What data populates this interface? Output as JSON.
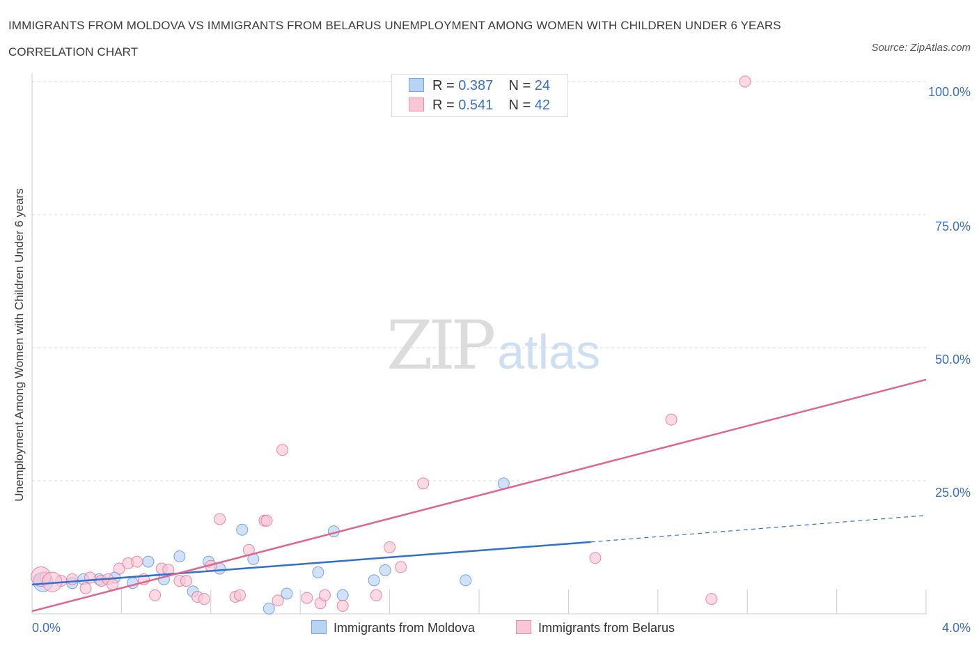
{
  "title": "IMMIGRANTS FROM MOLDOVA VS IMMIGRANTS FROM BELARUS UNEMPLOYMENT AMONG WOMEN WITH CHILDREN UNDER 6 YEARS CORRELATION CHART",
  "source": "Source: ZipAtlas.com",
  "watermark": {
    "zip": "ZIP",
    "atlas": "atlas"
  },
  "legend_top": [
    {
      "r_label": "R =",
      "r_value": "0.387",
      "n_label": "N =",
      "n_value": "24",
      "fill": "#b9d3f5",
      "stroke": "#7aa6e0"
    },
    {
      "r_label": "R =",
      "r_value": "0.541",
      "n_label": "N =",
      "n_value": "42",
      "fill": "#f9c6d5",
      "stroke": "#e591ab"
    }
  ],
  "legend_bottom": [
    {
      "label": "Immigrants from Moldova",
      "fill": "#b9d3f5",
      "stroke": "#7aa6e0"
    },
    {
      "label": "Immigrants from Belarus",
      "fill": "#f9c6d5",
      "stroke": "#e591ab"
    }
  ],
  "chart_data": {
    "type": "scatter",
    "title": "IMMIGRANTS FROM MOLDOVA VS IMMIGRANTS FROM BELARUS UNEMPLOYMENT AMONG WOMEN WITH CHILDREN UNDER 6 YEARS CORRELATION CHART",
    "xlabel": "",
    "ylabel": "Unemployment Among Women with Children Under 6 years",
    "xlim": [
      0,
      4.0
    ],
    "ylim": [
      0,
      100
    ],
    "x_tick_labels": [
      "0.0%",
      "4.0%"
    ],
    "y_ticks": [
      25,
      50,
      75,
      100
    ],
    "y_tick_labels": [
      "25.0%",
      "50.0%",
      "75.0%",
      "100.0%"
    ],
    "grid": true,
    "legend_position": "top-center",
    "series": [
      {
        "name": "Immigrants from Moldova",
        "color": "#5b8fd6",
        "fill": "#b9d3f5",
        "points": [
          [
            0.03,
            6.5
          ],
          [
            0.18,
            5.8
          ],
          [
            0.23,
            6.5
          ],
          [
            0.3,
            6.5
          ],
          [
            0.37,
            6.8
          ],
          [
            0.45,
            5.8
          ],
          [
            0.52,
            9.8
          ],
          [
            0.59,
            6.5
          ],
          [
            0.66,
            10.8
          ],
          [
            0.72,
            4.2
          ],
          [
            0.79,
            9.8
          ],
          [
            0.84,
            8.5
          ],
          [
            0.94,
            15.8
          ],
          [
            0.99,
            10.3
          ],
          [
            1.06,
            1.0
          ],
          [
            1.14,
            3.8
          ],
          [
            1.28,
            7.8
          ],
          [
            1.35,
            15.5
          ],
          [
            1.39,
            3.5
          ],
          [
            1.53,
            6.3
          ],
          [
            1.58,
            8.2
          ],
          [
            1.94,
            6.3
          ],
          [
            2.11,
            24.5
          ],
          [
            0.05,
            6.0
          ]
        ],
        "trend": {
          "x": [
            0.0,
            2.5
          ],
          "y": [
            5.5,
            13.5
          ],
          "dashed_extension_to": [
            4.0,
            18.5
          ],
          "color": "#2f6fcf"
        }
      },
      {
        "name": "Immigrants from Belarus",
        "color": "#e86c97",
        "fill": "#f9c6d5",
        "points": [
          [
            0.06,
            6.8
          ],
          [
            0.13,
            6.2
          ],
          [
            0.18,
            6.5
          ],
          [
            0.24,
            4.8
          ],
          [
            0.26,
            6.8
          ],
          [
            0.31,
            6.2
          ],
          [
            0.34,
            6.5
          ],
          [
            0.36,
            5.5
          ],
          [
            0.39,
            8.5
          ],
          [
            0.43,
            9.5
          ],
          [
            0.47,
            9.8
          ],
          [
            0.5,
            6.5
          ],
          [
            0.55,
            3.5
          ],
          [
            0.58,
            8.5
          ],
          [
            0.61,
            8.3
          ],
          [
            0.66,
            6.2
          ],
          [
            0.69,
            6.2
          ],
          [
            0.74,
            3.2
          ],
          [
            0.77,
            2.8
          ],
          [
            0.8,
            9.0
          ],
          [
            0.84,
            17.8
          ],
          [
            0.91,
            3.2
          ],
          [
            0.93,
            3.5
          ],
          [
            0.97,
            12.0
          ],
          [
            1.04,
            17.5
          ],
          [
            1.05,
            17.5
          ],
          [
            1.1,
            2.5
          ],
          [
            1.12,
            30.8
          ],
          [
            1.23,
            3.0
          ],
          [
            1.29,
            2.0
          ],
          [
            1.31,
            3.5
          ],
          [
            1.39,
            1.5
          ],
          [
            1.54,
            3.5
          ],
          [
            1.6,
            12.5
          ],
          [
            1.65,
            8.8
          ],
          [
            1.75,
            24.5
          ],
          [
            2.52,
            10.5
          ],
          [
            2.86,
            36.5
          ],
          [
            3.04,
            2.8
          ],
          [
            3.19,
            100.0
          ],
          [
            0.04,
            7.0
          ],
          [
            0.09,
            6.0
          ]
        ],
        "trend": {
          "x": [
            0.0,
            4.0
          ],
          "y": [
            0.5,
            44.0
          ],
          "color": "#e0648f"
        }
      }
    ]
  }
}
